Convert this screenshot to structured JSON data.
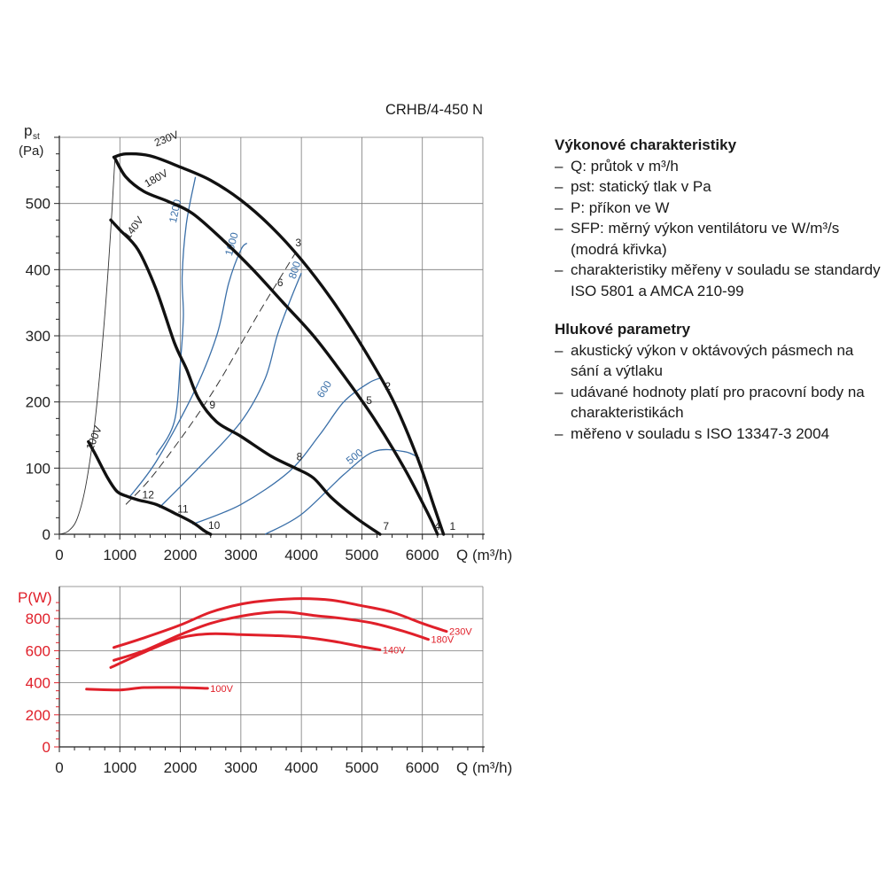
{
  "title": "CRHB/4-450 N",
  "colors": {
    "grid": "#7a7a7a",
    "curve": "#111111",
    "sfp": "#3a6fa8",
    "power": "#e0202a",
    "axis": "#222222",
    "power_axis": "#e0202a"
  },
  "chart_data": [
    {
      "type": "line",
      "name": "pressure",
      "ylabel_main": "p",
      "ylabel_sub": "st",
      "ylabel_unit": "(Pa)",
      "xlabel": "Q (m³/h)",
      "xlim": [
        0,
        7000
      ],
      "ylim": [
        0,
        600
      ],
      "xticks": [
        0,
        1000,
        2000,
        3000,
        4000,
        5000,
        6000
      ],
      "yticks": [
        0,
        100,
        200,
        300,
        400,
        500
      ],
      "grid": true,
      "series": [
        {
          "name": "230V",
          "points": [
            [
              900,
              570
            ],
            [
              1100,
              575
            ],
            [
              1500,
              572
            ],
            [
              2000,
              555
            ],
            [
              2500,
              535
            ],
            [
              3000,
              505
            ],
            [
              3500,
              465
            ],
            [
              4000,
              415
            ],
            [
              4500,
              355
            ],
            [
              5000,
              285
            ],
            [
              5500,
              205
            ],
            [
              5900,
              120
            ],
            [
              6200,
              40
            ],
            [
              6350,
              0
            ]
          ]
        },
        {
          "name": "180V",
          "points": [
            [
              920,
              568
            ],
            [
              1100,
              540
            ],
            [
              1400,
              518
            ],
            [
              1800,
              503
            ],
            [
              2200,
              485
            ],
            [
              2700,
              445
            ],
            [
              3200,
              400
            ],
            [
              3700,
              350
            ],
            [
              4200,
              300
            ],
            [
              4700,
              240
            ],
            [
              5200,
              175
            ],
            [
              5700,
              100
            ],
            [
              6100,
              30
            ],
            [
              6250,
              0
            ]
          ]
        },
        {
          "name": "140V",
          "points": [
            [
              850,
              475
            ],
            [
              1000,
              460
            ],
            [
              1300,
              430
            ],
            [
              1600,
              370
            ],
            [
              1900,
              290
            ],
            [
              2100,
              250
            ],
            [
              2300,
              205
            ],
            [
              2600,
              170
            ],
            [
              3000,
              148
            ],
            [
              3500,
              118
            ],
            [
              3900,
              100
            ],
            [
              4200,
              85
            ],
            [
              4500,
              55
            ],
            [
              4900,
              25
            ],
            [
              5300,
              0
            ]
          ]
        },
        {
          "name": "100V",
          "points": [
            [
              480,
              140
            ],
            [
              600,
              120
            ],
            [
              800,
              85
            ],
            [
              950,
              65
            ],
            [
              1100,
              58
            ],
            [
              1300,
              52
            ],
            [
              1600,
              45
            ],
            [
              1900,
              32
            ],
            [
              2200,
              18
            ],
            [
              2400,
              5
            ],
            [
              2500,
              0
            ]
          ]
        }
      ],
      "system_curve": [
        [
          0,
          0
        ],
        [
          150,
          5
        ],
        [
          300,
          25
        ],
        [
          450,
          80
        ],
        [
          600,
          180
        ],
        [
          750,
          330
        ],
        [
          850,
          460
        ],
        [
          920,
          570
        ]
      ],
      "efficiency_line": [
        [
          1100,
          45
        ],
        [
          1600,
          95
        ],
        [
          2500,
          210
        ],
        [
          3300,
          335
        ],
        [
          3900,
          425
        ]
      ],
      "sfp_curves": [
        {
          "label": "1200",
          "points": [
            [
              1600,
              120
            ],
            [
              1900,
              170
            ],
            [
              2000,
              260
            ],
            [
              2050,
              330
            ],
            [
              2030,
              390
            ],
            [
              2100,
              470
            ],
            [
              2250,
              540
            ]
          ]
        },
        {
          "label": "1000",
          "points": [
            [
              1150,
              55
            ],
            [
              1600,
              110
            ],
            [
              2200,
              210
            ],
            [
              2600,
              300
            ],
            [
              2800,
              380
            ],
            [
              3000,
              430
            ],
            [
              3100,
              440
            ]
          ]
        },
        {
          "label": "800",
          "points": [
            [
              1650,
              40
            ],
            [
              2300,
              100
            ],
            [
              3000,
              170
            ],
            [
              3400,
              235
            ],
            [
              3600,
              300
            ],
            [
              3800,
              350
            ],
            [
              4000,
              395
            ]
          ]
        },
        {
          "label": "600",
          "points": [
            [
              2200,
              15
            ],
            [
              3000,
              45
            ],
            [
              3800,
              95
            ],
            [
              4300,
              150
            ],
            [
              4700,
              200
            ],
            [
              5100,
              228
            ],
            [
              5300,
              236
            ]
          ]
        },
        {
          "label": "500",
          "points": [
            [
              3400,
              0
            ],
            [
              4000,
              30
            ],
            [
              4700,
              90
            ],
            [
              5200,
              125
            ],
            [
              5700,
              125
            ],
            [
              5950,
              115
            ]
          ]
        }
      ],
      "point_labels": [
        "1",
        "2",
        "3",
        "4",
        "5",
        "6",
        "7",
        "8",
        "9",
        "10",
        "11",
        "12"
      ]
    },
    {
      "type": "line",
      "name": "power",
      "ylabel": "P(W)",
      "xlabel": "Q (m³/h)",
      "xlim": [
        0,
        7000
      ],
      "ylim": [
        0,
        1000
      ],
      "xticks": [
        0,
        1000,
        2000,
        3000,
        4000,
        5000,
        6000
      ],
      "yticks": [
        0,
        200,
        400,
        600,
        800
      ],
      "grid": true,
      "series": [
        {
          "name": "230V",
          "points": [
            [
              900,
              620
            ],
            [
              1400,
              680
            ],
            [
              2000,
              760
            ],
            [
              2500,
              840
            ],
            [
              3000,
              890
            ],
            [
              3500,
              915
            ],
            [
              4000,
              925
            ],
            [
              4500,
              915
            ],
            [
              5000,
              880
            ],
            [
              5500,
              840
            ],
            [
              6000,
              770
            ],
            [
              6400,
              720
            ]
          ]
        },
        {
          "name": "180V",
          "points": [
            [
              900,
              540
            ],
            [
              1400,
              600
            ],
            [
              2000,
              700
            ],
            [
              2500,
              770
            ],
            [
              3000,
              815
            ],
            [
              3500,
              840
            ],
            [
              3800,
              840
            ],
            [
              4200,
              820
            ],
            [
              4700,
              800
            ],
            [
              5200,
              770
            ],
            [
              5700,
              720
            ],
            [
              6100,
              670
            ]
          ]
        },
        {
          "name": "140V",
          "points": [
            [
              850,
              495
            ],
            [
              1400,
              590
            ],
            [
              2000,
              680
            ],
            [
              2500,
              705
            ],
            [
              3000,
              700
            ],
            [
              3500,
              695
            ],
            [
              4000,
              685
            ],
            [
              4500,
              660
            ],
            [
              5000,
              625
            ],
            [
              5300,
              605
            ]
          ]
        },
        {
          "name": "100V",
          "points": [
            [
              450,
              360
            ],
            [
              1000,
              355
            ],
            [
              1400,
              370
            ],
            [
              2000,
              370
            ],
            [
              2450,
              365
            ]
          ]
        }
      ]
    }
  ],
  "notes": {
    "heading1": "Výkonové charakteristiky",
    "items1": [
      "Q: průtok v m³/h",
      "pst: statický tlak v Pa",
      "P: příkon ve W",
      "SFP: měrný výkon ventilátoru ve W/m³/s (modrá křivka)",
      "charakteristiky měřeny v souladu se standardy ISO 5801 a AMCA 210-99"
    ],
    "heading2": "Hlukové parametry",
    "items2": [
      "akustický výkon v oktávových pásmech na sání a výtlaku",
      "udávané hodnoty platí pro pracovní body na charakteristikách",
      "měřeno v souladu s ISO 13347-3 2004"
    ]
  }
}
